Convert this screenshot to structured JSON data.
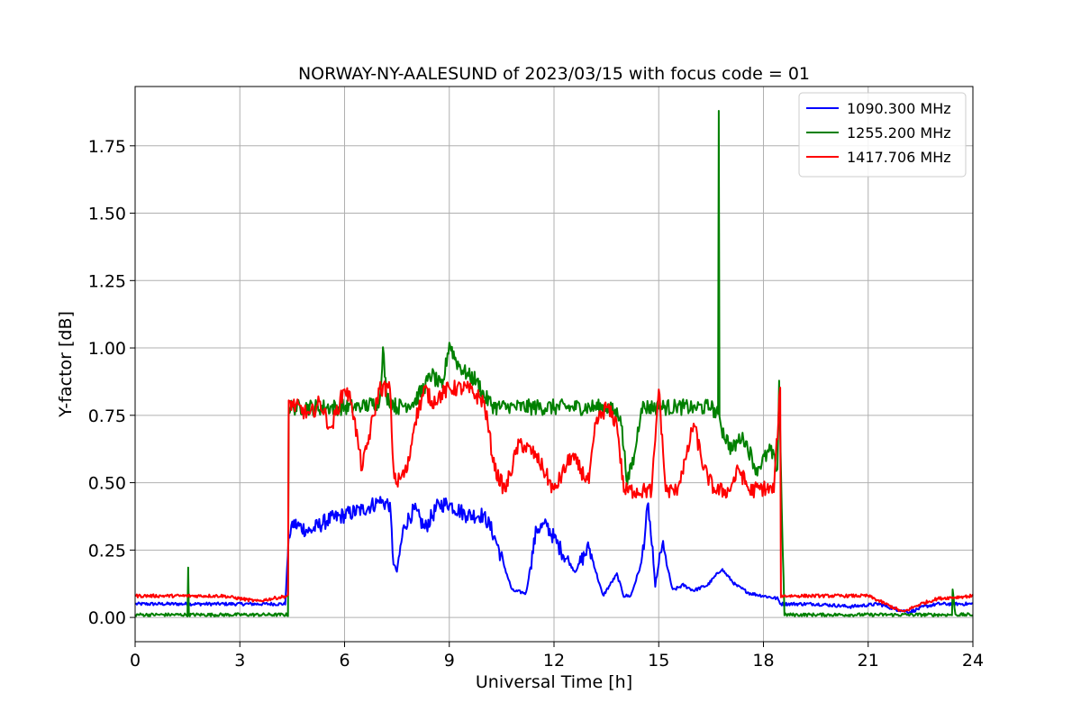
{
  "chart_data": {
    "type": "line",
    "title": "NORWAY-NY-AALESUND of 2023/03/15 with focus code = 01",
    "xlabel": "Universal Time [h]",
    "ylabel": "Y-factor [dB]",
    "xlim": [
      0,
      24
    ],
    "ylim": [
      -0.09,
      1.97
    ],
    "xticks": [
      0,
      3,
      6,
      9,
      12,
      15,
      18,
      21,
      24
    ],
    "xtick_labels": [
      "0",
      "3",
      "6",
      "9",
      "12",
      "15",
      "18",
      "21",
      "24"
    ],
    "yticks": [
      0.0,
      0.25,
      0.5,
      0.75,
      1.0,
      1.25,
      1.5,
      1.75
    ],
    "ytick_labels": [
      "0.00",
      "0.25",
      "0.50",
      "0.75",
      "1.00",
      "1.25",
      "1.50",
      "1.75"
    ],
    "grid": true,
    "legend_position": "top-right",
    "series": [
      {
        "name": "1090.300 MHz",
        "color": "#0000ff",
        "x": [
          0,
          1.5,
          3.0,
          4.3,
          4.4,
          4.5,
          5.0,
          5.5,
          6.0,
          6.5,
          7.0,
          7.3,
          7.4,
          7.5,
          7.7,
          8.0,
          8.3,
          8.7,
          9.0,
          9.5,
          10.0,
          10.3,
          10.6,
          10.8,
          11.2,
          11.5,
          11.8,
          12.2,
          12.6,
          13.0,
          13.4,
          13.8,
          14.0,
          14.2,
          14.5,
          14.7,
          14.9,
          15.1,
          15.4,
          15.7,
          16.0,
          16.4,
          16.8,
          17.2,
          17.6,
          18.0,
          18.4,
          18.5,
          18.6,
          19.5,
          20.5,
          21.3,
          21.8,
          22.2,
          22.6,
          23.0,
          23.5,
          24.0
        ],
        "y": [
          0.05,
          0.05,
          0.05,
          0.05,
          0.3,
          0.35,
          0.32,
          0.36,
          0.38,
          0.4,
          0.43,
          0.42,
          0.2,
          0.17,
          0.34,
          0.4,
          0.33,
          0.42,
          0.42,
          0.38,
          0.38,
          0.3,
          0.18,
          0.1,
          0.09,
          0.33,
          0.34,
          0.25,
          0.17,
          0.26,
          0.08,
          0.16,
          0.08,
          0.08,
          0.2,
          0.42,
          0.12,
          0.27,
          0.1,
          0.12,
          0.1,
          0.12,
          0.18,
          0.12,
          0.09,
          0.08,
          0.07,
          0.05,
          0.05,
          0.05,
          0.04,
          0.05,
          0.03,
          0.02,
          0.04,
          0.05,
          0.05,
          0.05
        ]
      },
      {
        "name": "1255.200 MHz",
        "color": "#008000",
        "x": [
          0,
          1.5,
          1.52,
          1.54,
          3.0,
          4.38,
          4.4,
          6.5,
          7.0,
          7.1,
          7.2,
          7.5,
          8.0,
          8.5,
          8.8,
          9.0,
          9.2,
          9.5,
          9.8,
          10.0,
          10.3,
          10.7,
          11.5,
          12.5,
          13.5,
          13.9,
          14.1,
          14.3,
          14.5,
          14.7,
          15.0,
          15.5,
          16.0,
          16.5,
          16.7,
          16.72,
          16.74,
          16.8,
          17.1,
          17.4,
          17.8,
          18.2,
          18.4,
          18.45,
          18.5,
          18.6,
          20.0,
          21.0,
          22.0,
          23.0,
          23.4,
          23.42,
          23.5,
          24.0
        ],
        "y": [
          0.01,
          0.01,
          0.18,
          0.01,
          0.01,
          0.01,
          0.78,
          0.78,
          0.8,
          1.0,
          0.82,
          0.78,
          0.8,
          0.9,
          0.85,
          1.02,
          0.95,
          0.9,
          0.88,
          0.82,
          0.78,
          0.78,
          0.78,
          0.78,
          0.78,
          0.75,
          0.5,
          0.6,
          0.78,
          0.78,
          0.78,
          0.78,
          0.78,
          0.78,
          0.75,
          1.88,
          0.75,
          0.7,
          0.62,
          0.68,
          0.55,
          0.62,
          0.55,
          0.88,
          0.55,
          0.01,
          0.01,
          0.01,
          0.01,
          0.01,
          0.01,
          0.1,
          0.01,
          0.01
        ]
      },
      {
        "name": "1417.706 MHz",
        "color": "#ff0000",
        "x": [
          0,
          2.5,
          3.0,
          3.5,
          4.38,
          4.4,
          5.0,
          5.3,
          5.6,
          6.0,
          6.2,
          6.5,
          7.0,
          7.3,
          7.4,
          7.5,
          7.8,
          8.0,
          8.3,
          8.5,
          9.0,
          9.5,
          10.0,
          10.3,
          10.6,
          11.0,
          11.5,
          12.0,
          12.5,
          13.0,
          13.2,
          13.5,
          13.8,
          14.0,
          14.3,
          14.6,
          14.8,
          15.0,
          15.2,
          15.5,
          15.8,
          16.0,
          16.3,
          16.6,
          17.0,
          17.3,
          17.6,
          18.0,
          18.3,
          18.48,
          18.5,
          19.5,
          21.0,
          21.5,
          22.0,
          22.5,
          23.0,
          24.0
        ],
        "y": [
          0.08,
          0.08,
          0.07,
          0.06,
          0.08,
          0.8,
          0.75,
          0.8,
          0.7,
          0.85,
          0.8,
          0.55,
          0.85,
          0.85,
          0.55,
          0.5,
          0.55,
          0.72,
          0.85,
          0.8,
          0.85,
          0.85,
          0.8,
          0.55,
          0.47,
          0.65,
          0.6,
          0.47,
          0.6,
          0.5,
          0.72,
          0.78,
          0.72,
          0.47,
          0.47,
          0.47,
          0.47,
          0.85,
          0.47,
          0.47,
          0.6,
          0.72,
          0.55,
          0.47,
          0.47,
          0.55,
          0.47,
          0.48,
          0.47,
          0.85,
          0.08,
          0.08,
          0.08,
          0.05,
          0.02,
          0.05,
          0.07,
          0.08
        ]
      }
    ]
  }
}
